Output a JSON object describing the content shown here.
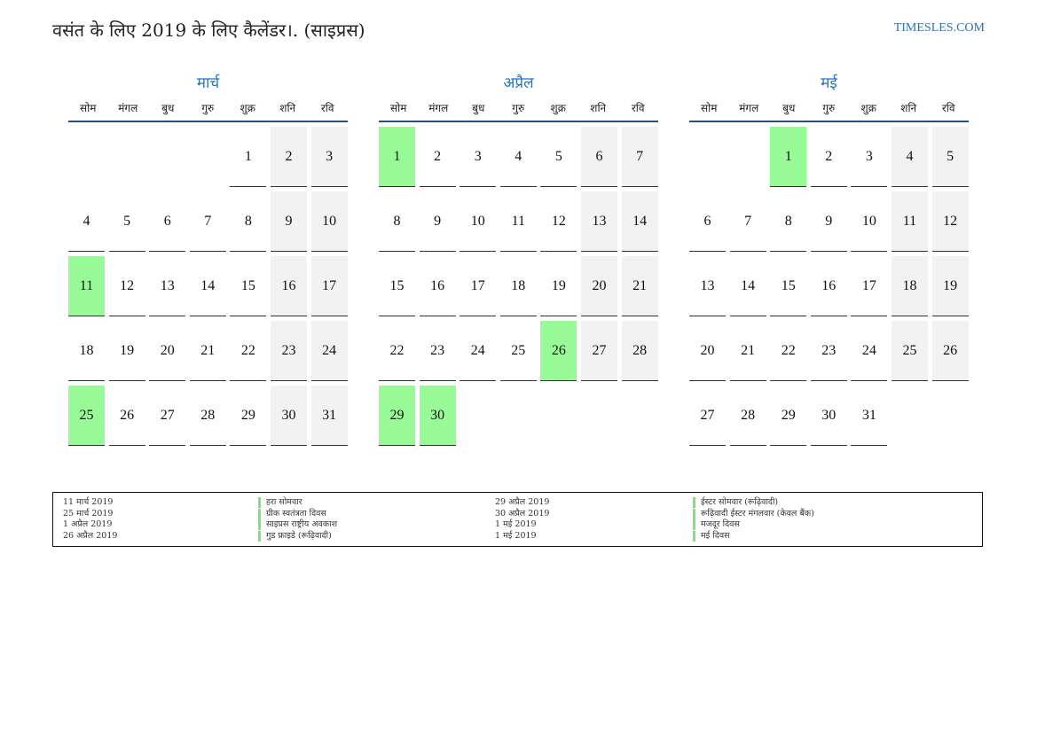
{
  "header": {
    "title": "वसंत के लिए 2019 के लिए कैलेंडर।. (साइप्रस)",
    "site": "TIMESLES.COM"
  },
  "weekday_labels": [
    "सोम",
    "मंगल",
    "बुध",
    "गुरु",
    "शुक्र",
    "शनि",
    "रवि"
  ],
  "months": [
    {
      "name": "मार्च",
      "offset": 4,
      "days": 31,
      "holidays": [
        11,
        25
      ]
    },
    {
      "name": "अप्रैल",
      "offset": 0,
      "days": 30,
      "holidays": [
        1,
        26,
        29,
        30
      ]
    },
    {
      "name": "मई",
      "offset": 2,
      "days": 31,
      "holidays": [
        1
      ]
    }
  ],
  "legend": [
    {
      "date": "11 मार्च 2019",
      "name": "हरा सोमवार"
    },
    {
      "date": "25 मार्च 2019",
      "name": "ग्रीक स्वतंत्रता दिवस"
    },
    {
      "date": "1 अप्रैल 2019",
      "name": "साइप्रस राष्ट्रीय अवकाश"
    },
    {
      "date": "26 अप्रैल 2019",
      "name": "गुड फ्राइडे (रूढ़िवादी)"
    },
    {
      "date": "29 अप्रैल 2019",
      "name": "ईस्टर सोमवार (रूढ़िवादी)"
    },
    {
      "date": "30 अप्रैल 2019",
      "name": "रूढ़िवादी ईस्टर मंगलवार (केवल बैंक)"
    },
    {
      "date": "1 मई 2019",
      "name": "मजदूर दिवस"
    },
    {
      "date": "1 मई 2019",
      "name": "मई दिवस"
    }
  ]
}
